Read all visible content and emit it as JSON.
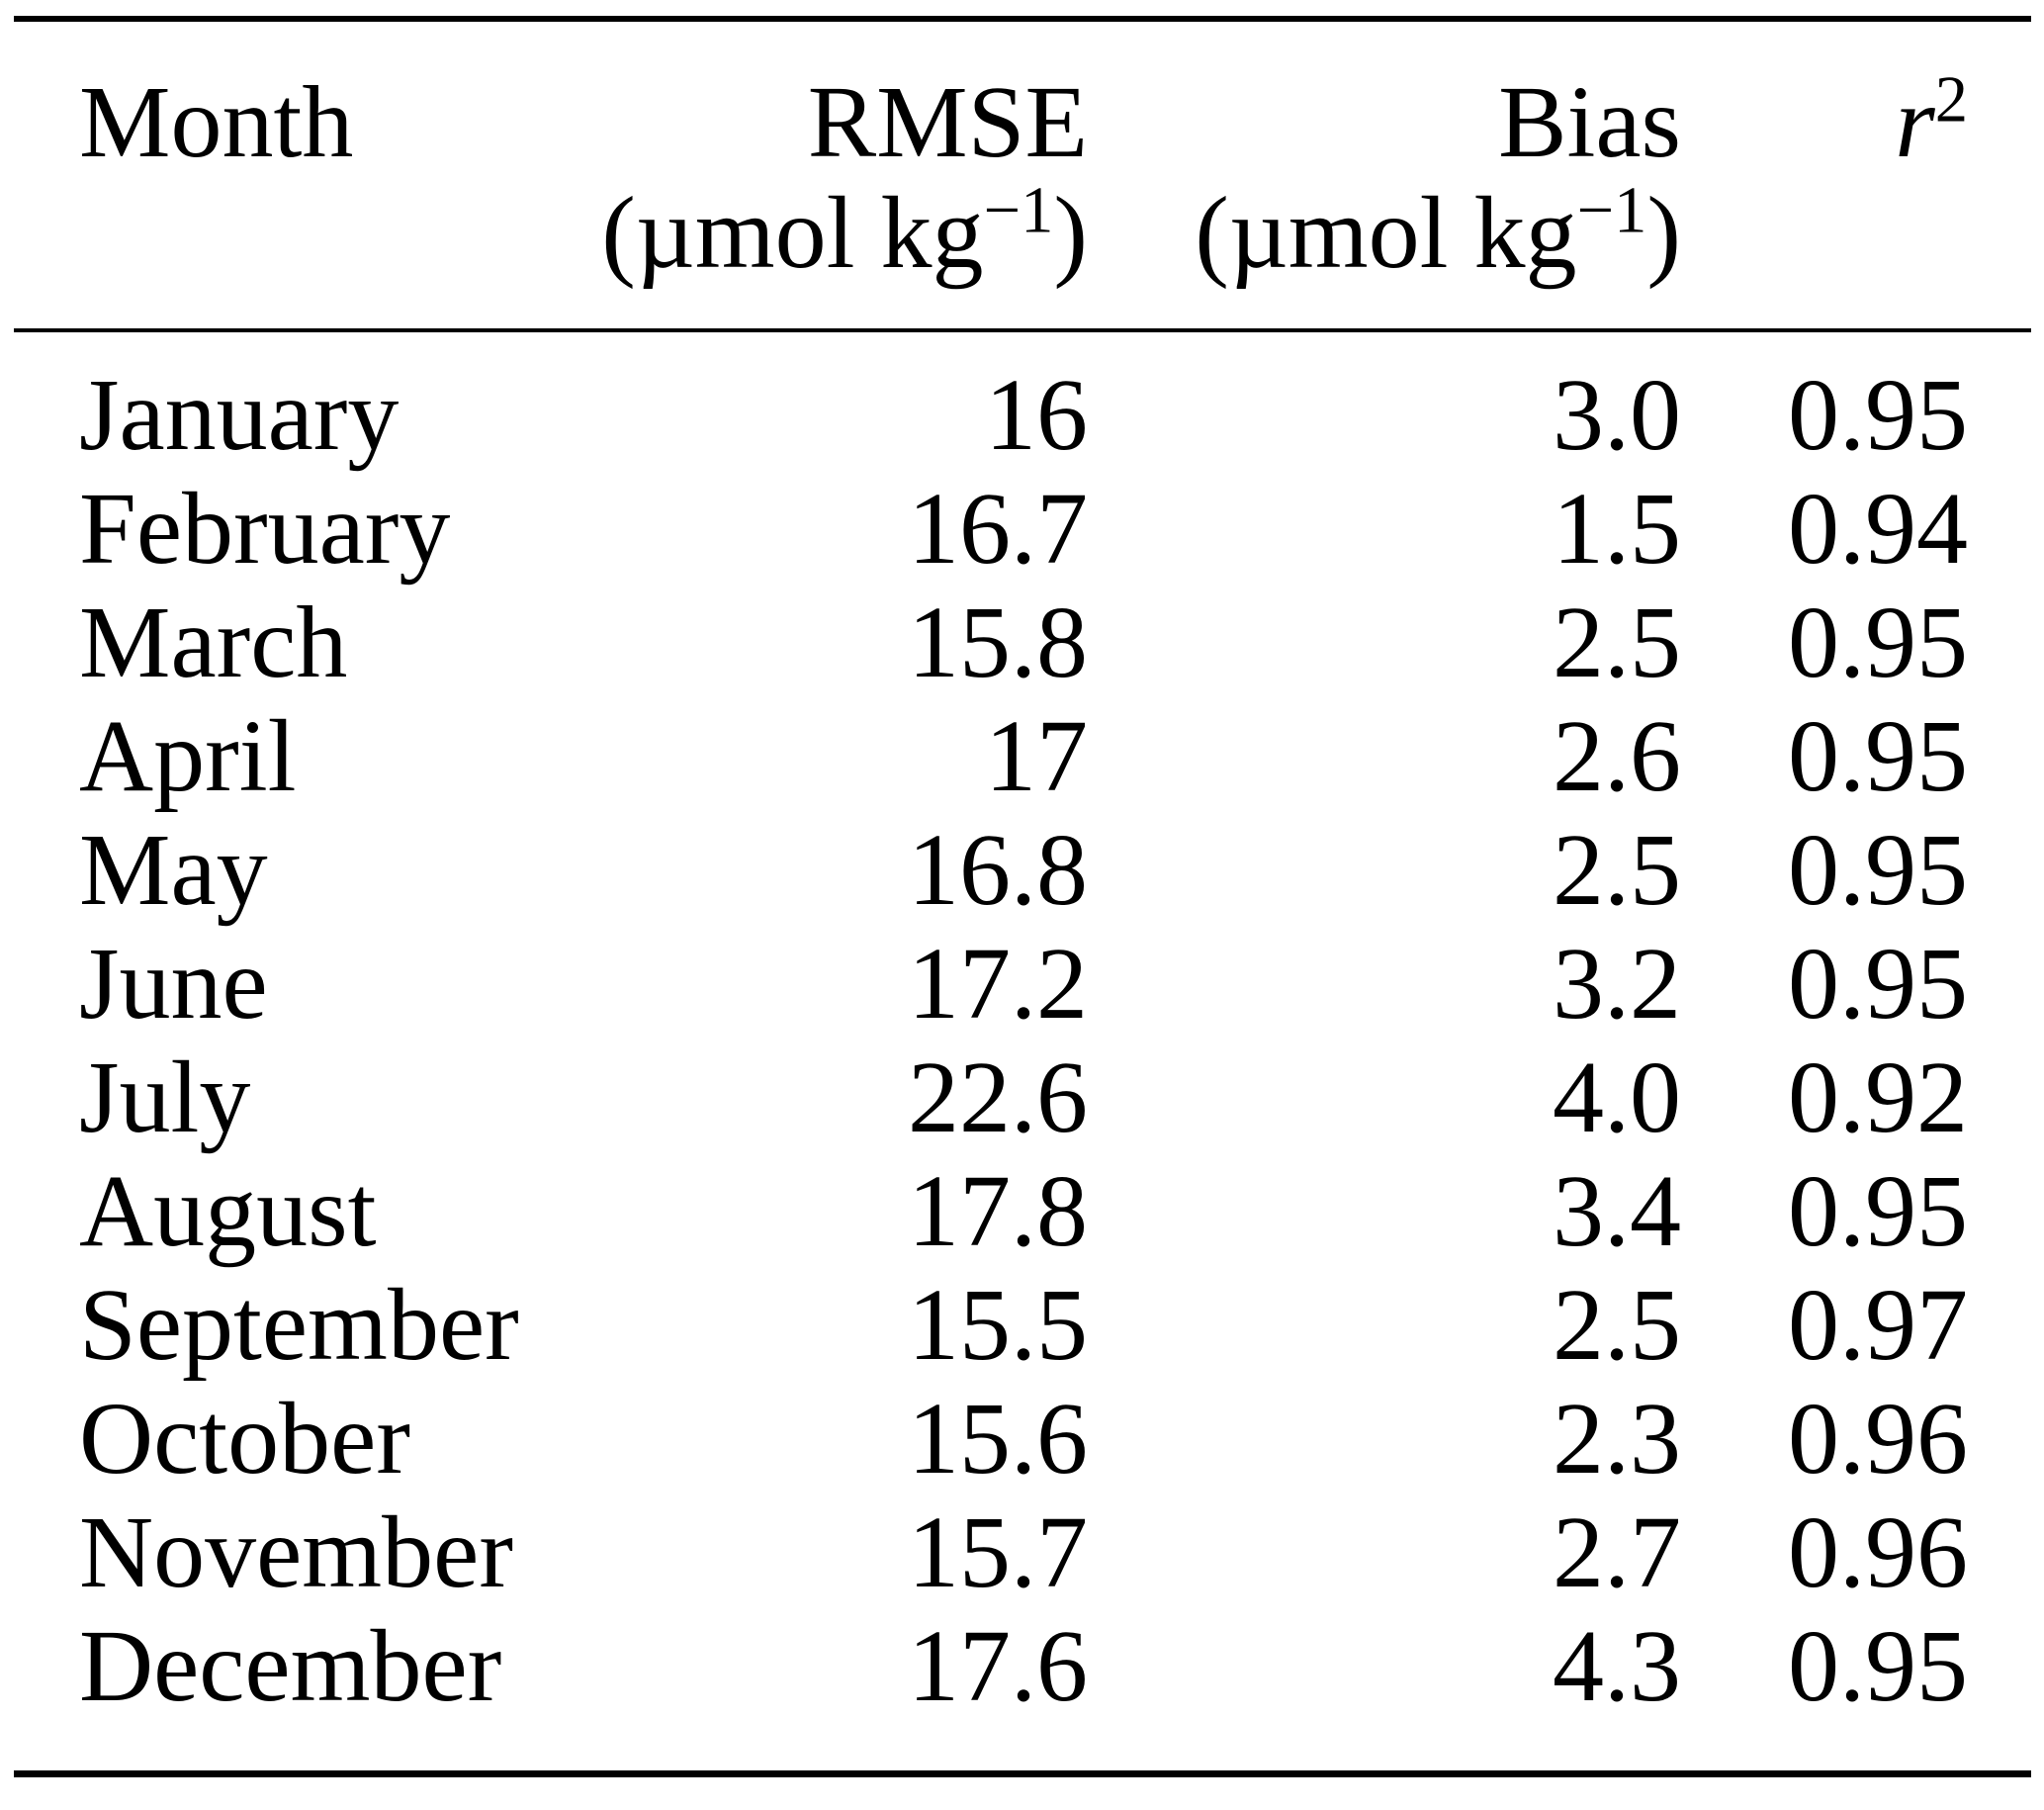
{
  "page": {
    "background": "#ffffff",
    "text_color": "#000000"
  },
  "table": {
    "header": {
      "month": {
        "label": "Month"
      },
      "rmse": {
        "label": "RMSE",
        "unit_open": "(µmol kg",
        "unit_sup": "−1",
        "unit_close": ")"
      },
      "bias": {
        "label": "Bias",
        "unit_open": "(µmol kg",
        "unit_sup": "−1",
        "unit_close": ")"
      },
      "r2": {
        "label_base": "r",
        "label_sup": "2"
      }
    },
    "rows": [
      {
        "month": "January",
        "rmse": "16",
        "bias": "3.0",
        "r2": "0.95"
      },
      {
        "month": "February",
        "rmse": "16.7",
        "bias": "1.5",
        "r2": "0.94"
      },
      {
        "month": "March",
        "rmse": "15.8",
        "bias": "2.5",
        "r2": "0.95"
      },
      {
        "month": "April",
        "rmse": "17",
        "bias": "2.6",
        "r2": "0.95"
      },
      {
        "month": "May",
        "rmse": "16.8",
        "bias": "2.5",
        "r2": "0.95"
      },
      {
        "month": "June",
        "rmse": "17.2",
        "bias": "3.2",
        "r2": "0.95"
      },
      {
        "month": "July",
        "rmse": "22.6",
        "bias": "4.0",
        "r2": "0.92"
      },
      {
        "month": "August",
        "rmse": "17.8",
        "bias": "3.4",
        "r2": "0.95"
      },
      {
        "month": "September",
        "rmse": "15.5",
        "bias": "2.5",
        "r2": "0.97"
      },
      {
        "month": "October",
        "rmse": "15.6",
        "bias": "2.3",
        "r2": "0.96"
      },
      {
        "month": "November",
        "rmse": "15.7",
        "bias": "2.7",
        "r2": "0.96"
      },
      {
        "month": "December",
        "rmse": "17.6",
        "bias": "4.3",
        "r2": "0.95"
      }
    ]
  }
}
